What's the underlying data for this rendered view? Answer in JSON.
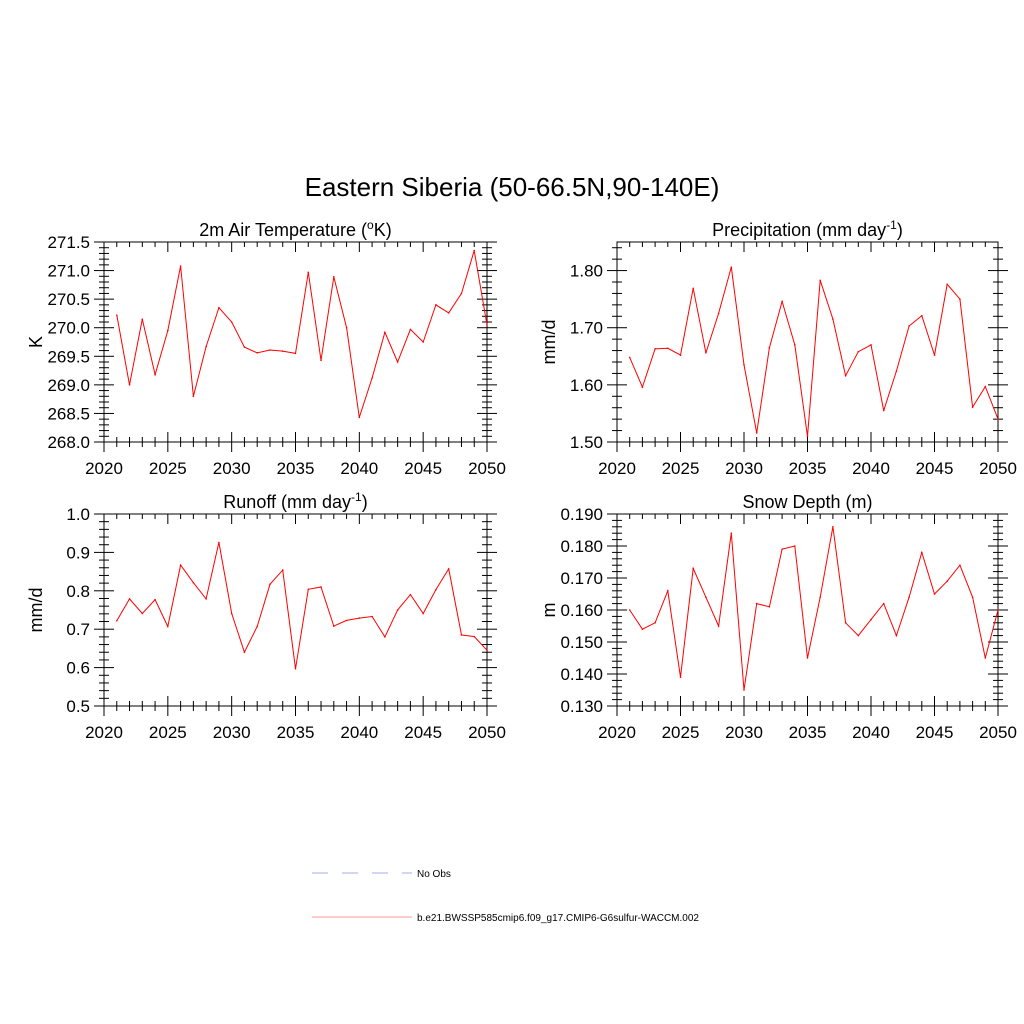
{
  "title": "Eastern Siberia (50-66.5N,90-140E)",
  "colors": {
    "series": "#ff0000",
    "obs": "#aaaaee",
    "axis": "#000000"
  },
  "legend": {
    "items": [
      {
        "label": "No Obs",
        "style": "dashed",
        "color": "#aaaaee"
      },
      {
        "label": "b.e21.BWSSP585cmip6.f09_g17.CMIP6-G6sulfur-WACCM.002",
        "style": "solid",
        "color": "#ff9999"
      }
    ]
  },
  "chart_data": [
    {
      "type": "line",
      "title": "2m Air Temperature (",
      "title_sup": "o",
      "title_after": "K)",
      "ylabel": "K",
      "xlim": [
        2020,
        2050
      ],
      "ylim": [
        268.0,
        271.5
      ],
      "xticks": [
        "2020",
        "2025",
        "2030",
        "2035",
        "2040",
        "2045",
        "2050"
      ],
      "yticks": [
        "268.0",
        "268.5",
        "269.0",
        "269.5",
        "270.0",
        "270.5",
        "271.0",
        "271.5"
      ],
      "series": [
        {
          "x": [
            2021,
            2022,
            2023,
            2024,
            2025,
            2026,
            2027,
            2028,
            2029,
            2030,
            2031,
            2032,
            2033,
            2034,
            2035,
            2036,
            2037,
            2038,
            2039,
            2040,
            2041,
            2042,
            2043,
            2044,
            2045,
            2046,
            2047,
            2048,
            2049,
            2050
          ],
          "values": [
            270.22,
            269.0,
            270.15,
            269.18,
            269.95,
            271.08,
            268.8,
            269.67,
            270.35,
            270.1,
            269.66,
            269.56,
            269.61,
            269.59,
            269.55,
            270.97,
            269.43,
            270.89,
            270.0,
            268.43,
            269.12,
            269.92,
            269.4,
            269.97,
            269.75,
            270.4,
            270.26,
            270.6,
            271.35,
            270.05
          ]
        }
      ]
    },
    {
      "type": "line",
      "title": "Precipitation (mm day",
      "title_sup": "-1",
      "title_after": ")",
      "ylabel": "mm/d",
      "xlim": [
        2020,
        2050
      ],
      "ylim": [
        1.5,
        1.85
      ],
      "xticks": [
        "2020",
        "2025",
        "2030",
        "2035",
        "2040",
        "2045",
        "2050"
      ],
      "yticks": [
        "1.50",
        "1.60",
        "1.70",
        "1.80"
      ],
      "series": [
        {
          "x": [
            2021,
            2022,
            2023,
            2024,
            2025,
            2026,
            2027,
            2028,
            2029,
            2030,
            2031,
            2032,
            2033,
            2034,
            2035,
            2036,
            2037,
            2038,
            2039,
            2040,
            2041,
            2042,
            2043,
            2044,
            2045,
            2046,
            2047,
            2048,
            2049,
            2050
          ],
          "values": [
            1.648,
            1.596,
            1.663,
            1.664,
            1.652,
            1.769,
            1.656,
            1.725,
            1.806,
            1.635,
            1.516,
            1.665,
            1.746,
            1.67,
            1.51,
            1.783,
            1.715,
            1.616,
            1.658,
            1.67,
            1.555,
            1.624,
            1.703,
            1.721,
            1.652,
            1.776,
            1.75,
            1.561,
            1.597,
            1.54
          ]
        }
      ]
    },
    {
      "type": "line",
      "title": "Runoff (mm day",
      "title_sup": "-1",
      "title_after": ")",
      "ylabel": "mm/d",
      "xlim": [
        2020,
        2050
      ],
      "ylim": [
        0.5,
        1.0
      ],
      "xticks": [
        "2020",
        "2025",
        "2030",
        "2035",
        "2040",
        "2045",
        "2050"
      ],
      "yticks": [
        "0.5",
        "0.6",
        "0.7",
        "0.8",
        "0.9",
        "1.0"
      ],
      "series": [
        {
          "x": [
            2021,
            2022,
            2023,
            2024,
            2025,
            2026,
            2027,
            2028,
            2029,
            2030,
            2031,
            2032,
            2033,
            2034,
            2035,
            2036,
            2037,
            2038,
            2039,
            2040,
            2041,
            2042,
            2043,
            2044,
            2045,
            2046,
            2047,
            2048,
            2049,
            2050
          ],
          "values": [
            0.722,
            0.779,
            0.741,
            0.777,
            0.707,
            0.867,
            0.821,
            0.779,
            0.926,
            0.741,
            0.64,
            0.707,
            0.817,
            0.854,
            0.597,
            0.804,
            0.81,
            0.708,
            0.723,
            0.729,
            0.733,
            0.68,
            0.75,
            0.79,
            0.741,
            0.803,
            0.857,
            0.685,
            0.681,
            0.645
          ]
        }
      ]
    },
    {
      "type": "line",
      "title": "Snow Depth (m)",
      "title_sup": "",
      "title_after": "",
      "ylabel": "m",
      "xlim": [
        2020,
        2050
      ],
      "ylim": [
        0.13,
        0.19
      ],
      "xticks": [
        "2020",
        "2025",
        "2030",
        "2035",
        "2040",
        "2045",
        "2050"
      ],
      "yticks": [
        "0.130",
        "0.140",
        "0.150",
        "0.160",
        "0.170",
        "0.180",
        "0.190"
      ],
      "series": [
        {
          "x": [
            2021,
            2022,
            2023,
            2024,
            2025,
            2026,
            2027,
            2028,
            2029,
            2030,
            2031,
            2032,
            2033,
            2034,
            2035,
            2036,
            2037,
            2038,
            2039,
            2040,
            2041,
            2042,
            2043,
            2044,
            2045,
            2046,
            2047,
            2048,
            2049,
            2050
          ],
          "values": [
            0.16,
            0.154,
            0.156,
            0.166,
            0.139,
            0.173,
            0.164,
            0.155,
            0.184,
            0.135,
            0.162,
            0.161,
            0.179,
            0.18,
            0.145,
            0.164,
            0.186,
            0.156,
            0.152,
            0.157,
            0.162,
            0.152,
            0.164,
            0.178,
            0.165,
            0.169,
            0.174,
            0.164,
            0.145,
            0.16
          ]
        }
      ]
    }
  ]
}
